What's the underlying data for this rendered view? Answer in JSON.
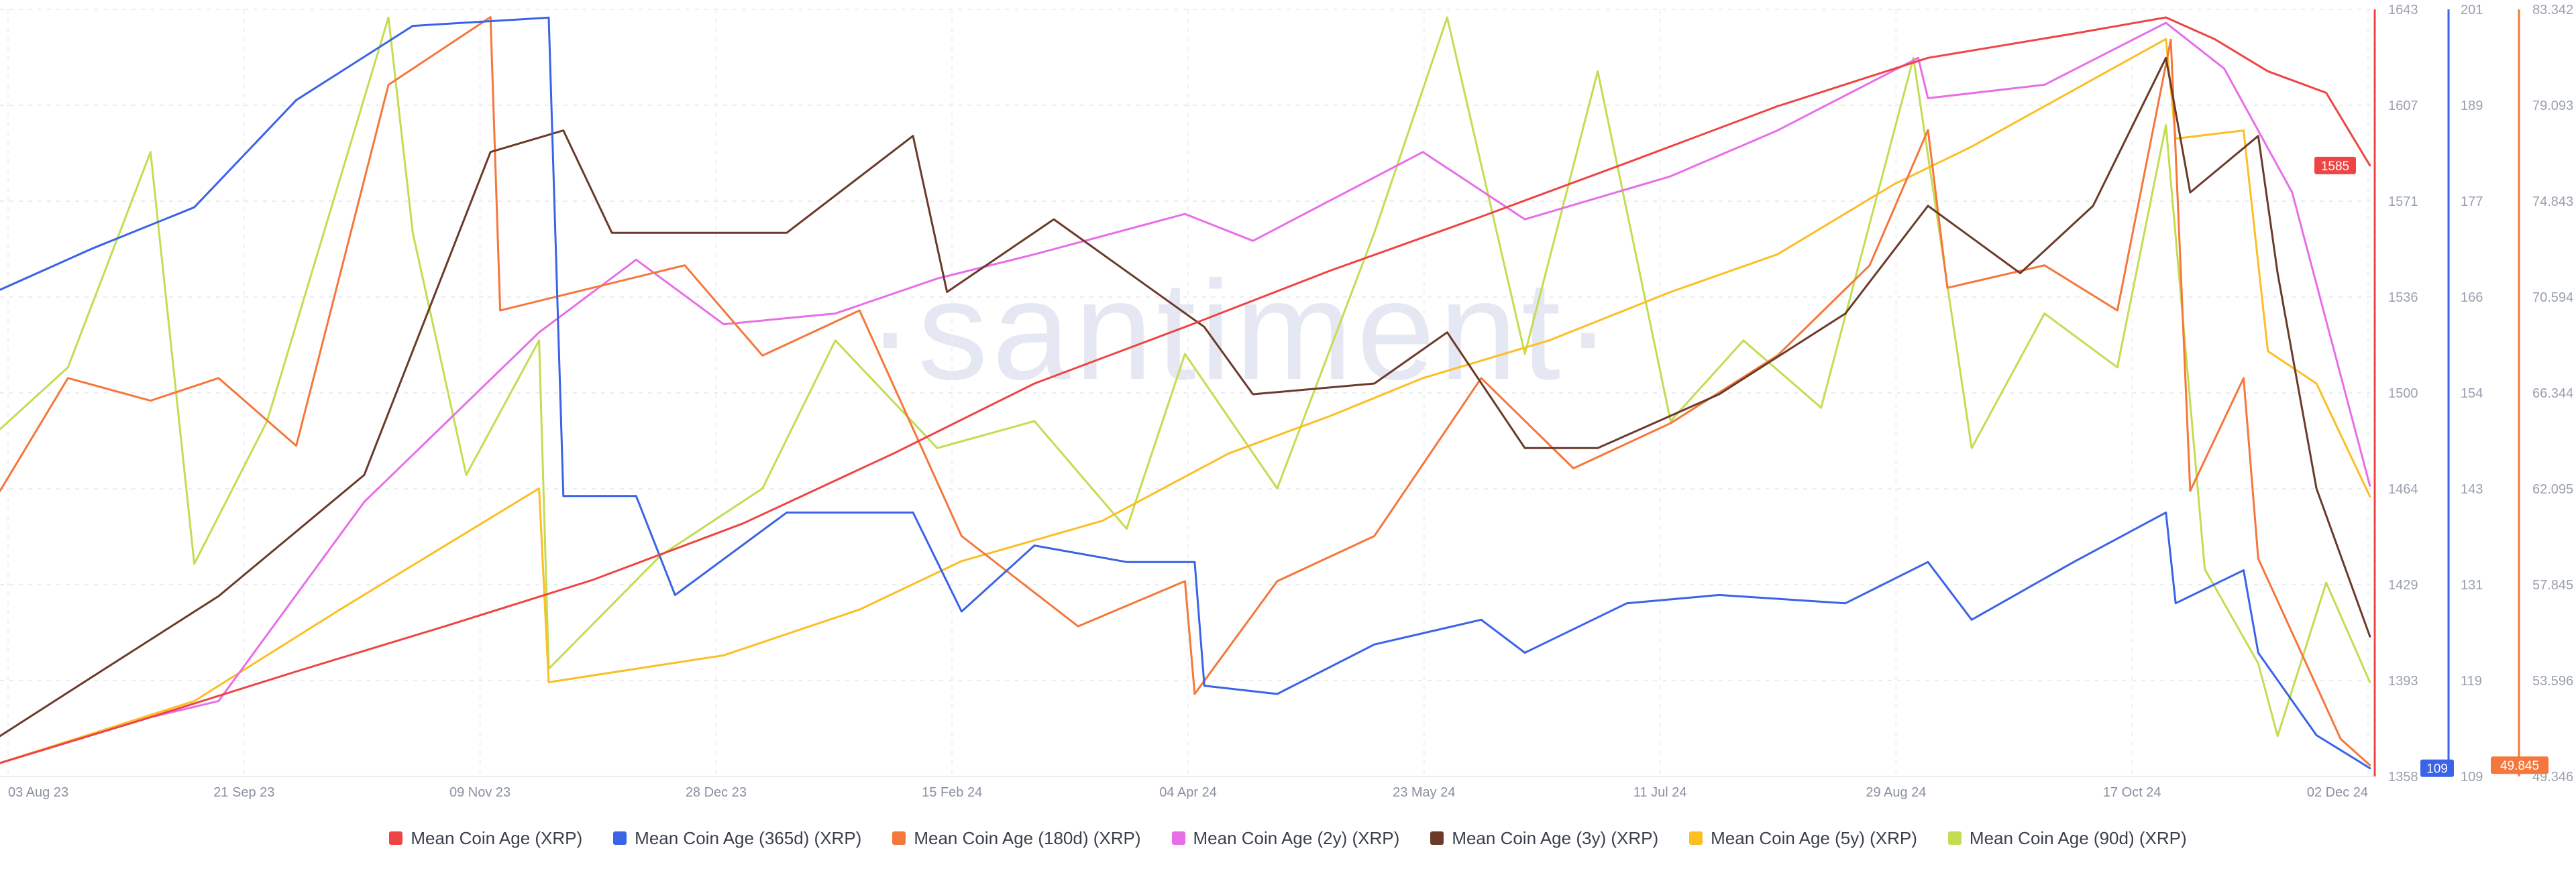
{
  "chart_data": {
    "type": "line",
    "watermark": "·santiment·",
    "x_ticks": [
      "03 Aug 23",
      "21 Sep 23",
      "09 Nov 23",
      "28 Dec 23",
      "15 Feb 24",
      "04 Apr 24",
      "23 May 24",
      "11 Jul 24",
      "29 Aug 24",
      "17 Oct 24",
      "02 Dec 24"
    ],
    "x_range": [
      "2023-08-01",
      "2024-12-02"
    ],
    "axes": [
      {
        "id": "mca",
        "color": "#ef4444",
        "ticks": [
          "1643",
          "1607",
          "1571",
          "1536",
          "1500",
          "1464",
          "1429",
          "1393",
          "1358"
        ],
        "range": [
          1358,
          1643
        ],
        "current_label": "1585",
        "current_value": 1585
      },
      {
        "id": "365d",
        "color": "#3b63e6",
        "ticks": [
          "201",
          "189",
          "177",
          "166",
          "154",
          "143",
          "131",
          "119",
          "109"
        ],
        "range": [
          108,
          201
        ],
        "current_label": "109",
        "current_value": 109
      },
      {
        "id": "180d",
        "color": "#f5773b",
        "ticks": [
          "83.342",
          "79.093",
          "74.843",
          "70.594",
          "66.344",
          "62.095",
          "57.845",
          "53.596",
          "49.346"
        ],
        "range": [
          49.346,
          83.342
        ],
        "current_label": "49.845",
        "current_value": 49.845
      }
    ],
    "series": [
      {
        "name": "Mean Coin Age (XRP)",
        "color": "#ef4444",
        "points": [
          [
            "2023-08-01",
            1363
          ],
          [
            "2023-09-01",
            1380
          ],
          [
            "2023-10-01",
            1397
          ],
          [
            "2023-11-01",
            1414
          ],
          [
            "2023-12-01",
            1431
          ],
          [
            "2024-01-01",
            1452
          ],
          [
            "2024-02-01",
            1478
          ],
          [
            "2024-03-01",
            1504
          ],
          [
            "2024-04-01",
            1525
          ],
          [
            "2024-05-01",
            1546
          ],
          [
            "2024-06-01",
            1566
          ],
          [
            "2024-07-01",
            1586
          ],
          [
            "2024-08-01",
            1607
          ],
          [
            "2024-09-01",
            1625
          ],
          [
            "2024-10-01",
            1634
          ],
          [
            "2024-10-20",
            1640
          ],
          [
            "2024-10-30",
            1632
          ],
          [
            "2024-11-10",
            1620
          ],
          [
            "2024-11-22",
            1612
          ],
          [
            "2024-12-01",
            1585
          ]
        ]
      },
      {
        "name": "Mean Coin Age (365d) (XRP)",
        "color": "#3b63e6",
        "points": [
          [
            "2023-08-01",
            167
          ],
          [
            "2023-08-20",
            172
          ],
          [
            "2023-09-10",
            177
          ],
          [
            "2023-10-01",
            190
          ],
          [
            "2023-10-25",
            199
          ],
          [
            "2023-11-22",
            200
          ],
          [
            "2023-11-25",
            142
          ],
          [
            "2023-12-10",
            142
          ],
          [
            "2023-12-18",
            130
          ],
          [
            "2024-01-10",
            140
          ],
          [
            "2024-02-05",
            140
          ],
          [
            "2024-02-15",
            128
          ],
          [
            "2024-03-01",
            136
          ],
          [
            "2024-03-20",
            134
          ],
          [
            "2024-04-03",
            134
          ],
          [
            "2024-04-05",
            119
          ],
          [
            "2024-04-20",
            118
          ],
          [
            "2024-05-10",
            124
          ],
          [
            "2024-06-01",
            127
          ],
          [
            "2024-06-10",
            123
          ],
          [
            "2024-07-01",
            129
          ],
          [
            "2024-07-20",
            130
          ],
          [
            "2024-08-15",
            129
          ],
          [
            "2024-09-01",
            134
          ],
          [
            "2024-09-10",
            127
          ],
          [
            "2024-10-01",
            134
          ],
          [
            "2024-10-20",
            140
          ],
          [
            "2024-10-22",
            129
          ],
          [
            "2024-11-05",
            133
          ],
          [
            "2024-11-08",
            123
          ],
          [
            "2024-11-20",
            113
          ],
          [
            "2024-12-01",
            109
          ]
        ]
      },
      {
        "name": "Mean Coin Age (180d) (XRP)",
        "color": "#f5773b",
        "points": [
          [
            "2023-08-01",
            62
          ],
          [
            "2023-08-15",
            67
          ],
          [
            "2023-09-01",
            66
          ],
          [
            "2023-09-15",
            67
          ],
          [
            "2023-10-01",
            64
          ],
          [
            "2023-10-20",
            80
          ],
          [
            "2023-11-10",
            83
          ],
          [
            "2023-11-12",
            70
          ],
          [
            "2023-12-01",
            71
          ],
          [
            "2023-12-20",
            72
          ],
          [
            "2024-01-05",
            68
          ],
          [
            "2024-01-25",
            70
          ],
          [
            "2024-02-15",
            60
          ],
          [
            "2024-03-10",
            56
          ],
          [
            "2024-04-01",
            58
          ],
          [
            "2024-04-03",
            53
          ],
          [
            "2024-04-20",
            58
          ],
          [
            "2024-05-10",
            60
          ],
          [
            "2024-06-01",
            67
          ],
          [
            "2024-06-20",
            63
          ],
          [
            "2024-07-10",
            65
          ],
          [
            "2024-08-01",
            68
          ],
          [
            "2024-08-20",
            72
          ],
          [
            "2024-09-01",
            78
          ],
          [
            "2024-09-05",
            71
          ],
          [
            "2024-09-25",
            72
          ],
          [
            "2024-10-10",
            70
          ],
          [
            "2024-10-21",
            82
          ],
          [
            "2024-10-25",
            62
          ],
          [
            "2024-11-05",
            67
          ],
          [
            "2024-11-08",
            59
          ],
          [
            "2024-11-25",
            51
          ],
          [
            "2024-12-01",
            49.845
          ]
        ]
      },
      {
        "name": "Mean Coin Age (2y) (XRP)",
        "color": "#e86ee8",
        "points": [
          [
            "2023-08-01",
            1363
          ],
          [
            "2023-09-01",
            1380
          ],
          [
            "2023-09-15",
            1386
          ],
          [
            "2023-10-15",
            1460
          ],
          [
            "2023-11-20",
            1523
          ],
          [
            "2023-12-10",
            1550
          ],
          [
            "2023-12-28",
            1526
          ],
          [
            "2024-01-20",
            1530
          ],
          [
            "2024-02-10",
            1543
          ],
          [
            "2024-03-01",
            1552
          ],
          [
            "2024-04-01",
            1567
          ],
          [
            "2024-04-15",
            1557
          ],
          [
            "2024-05-20",
            1590
          ],
          [
            "2024-06-10",
            1565
          ],
          [
            "2024-07-10",
            1581
          ],
          [
            "2024-08-01",
            1598
          ],
          [
            "2024-08-30",
            1625
          ],
          [
            "2024-09-01",
            1610
          ],
          [
            "2024-09-25",
            1615
          ],
          [
            "2024-10-20",
            1638
          ],
          [
            "2024-11-01",
            1621
          ],
          [
            "2024-11-15",
            1575
          ],
          [
            "2024-12-01",
            1466
          ]
        ]
      },
      {
        "name": "Mean Coin Age (3y) (XRP)",
        "color": "#6b3a2a",
        "points": [
          [
            "2023-08-01",
            1373
          ],
          [
            "2023-08-20",
            1395
          ],
          [
            "2023-09-15",
            1425
          ],
          [
            "2023-10-15",
            1470
          ],
          [
            "2023-11-10",
            1590
          ],
          [
            "2023-11-25",
            1598
          ],
          [
            "2023-12-05",
            1560
          ],
          [
            "2024-01-10",
            1560
          ],
          [
            "2024-02-05",
            1596
          ],
          [
            "2024-02-12",
            1538
          ],
          [
            "2024-03-05",
            1565
          ],
          [
            "2024-04-05",
            1525
          ],
          [
            "2024-04-15",
            1500
          ],
          [
            "2024-05-10",
            1504
          ],
          [
            "2024-05-25",
            1523
          ],
          [
            "2024-06-10",
            1480
          ],
          [
            "2024-06-25",
            1480
          ],
          [
            "2024-07-20",
            1500
          ],
          [
            "2024-08-15",
            1530
          ],
          [
            "2024-09-01",
            1570
          ],
          [
            "2024-09-20",
            1545
          ],
          [
            "2024-10-05",
            1570
          ],
          [
            "2024-10-20",
            1625
          ],
          [
            "2024-10-25",
            1575
          ],
          [
            "2024-11-08",
            1596
          ],
          [
            "2024-11-12",
            1545
          ],
          [
            "2024-11-20",
            1465
          ],
          [
            "2024-12-01",
            1410
          ]
        ]
      },
      {
        "name": "Mean Coin Age (5y) (XRP)",
        "color": "#fbbf24",
        "points": [
          [
            "2023-08-01",
            1363
          ],
          [
            "2023-09-10",
            1386
          ],
          [
            "2023-10-10",
            1420
          ],
          [
            "2023-11-20",
            1465
          ],
          [
            "2023-11-22",
            1393
          ],
          [
            "2023-12-28",
            1403
          ],
          [
            "2024-01-25",
            1420
          ],
          [
            "2024-02-15",
            1438
          ],
          [
            "2024-03-15",
            1453
          ],
          [
            "2024-04-10",
            1478
          ],
          [
            "2024-05-01",
            1492
          ],
          [
            "2024-05-20",
            1506
          ],
          [
            "2024-06-15",
            1520
          ],
          [
            "2024-07-10",
            1538
          ],
          [
            "2024-08-01",
            1552
          ],
          [
            "2024-08-25",
            1578
          ],
          [
            "2024-09-10",
            1592
          ],
          [
            "2024-09-30",
            1612
          ],
          [
            "2024-10-20",
            1632
          ],
          [
            "2024-10-22",
            1595
          ],
          [
            "2024-11-05",
            1598
          ],
          [
            "2024-11-10",
            1516
          ],
          [
            "2024-11-20",
            1504
          ],
          [
            "2024-12-01",
            1462
          ]
        ]
      },
      {
        "name": "Mean Coin Age (90d) (XRP)",
        "color": "#c3dd52",
        "points": [
          [
            "2023-08-01",
            1487
          ],
          [
            "2023-08-15",
            1510
          ],
          [
            "2023-09-01",
            1590
          ],
          [
            "2023-09-10",
            1437
          ],
          [
            "2023-09-25",
            1490
          ],
          [
            "2023-10-20",
            1640
          ],
          [
            "2023-10-25",
            1560
          ],
          [
            "2023-11-05",
            1470
          ],
          [
            "2023-11-20",
            1520
          ],
          [
            "2023-11-22",
            1398
          ],
          [
            "2023-12-15",
            1440
          ],
          [
            "2024-01-05",
            1465
          ],
          [
            "2024-01-20",
            1520
          ],
          [
            "2024-02-10",
            1480
          ],
          [
            "2024-03-01",
            1490
          ],
          [
            "2024-03-20",
            1450
          ],
          [
            "2024-04-01",
            1515
          ],
          [
            "2024-04-20",
            1465
          ],
          [
            "2024-05-10",
            1560
          ],
          [
            "2024-05-25",
            1640
          ],
          [
            "2024-06-10",
            1515
          ],
          [
            "2024-06-25",
            1620
          ],
          [
            "2024-07-10",
            1490
          ],
          [
            "2024-07-25",
            1520
          ],
          [
            "2024-08-10",
            1495
          ],
          [
            "2024-08-29",
            1625
          ],
          [
            "2024-09-10",
            1480
          ],
          [
            "2024-09-25",
            1530
          ],
          [
            "2024-10-10",
            1510
          ],
          [
            "2024-10-20",
            1600
          ],
          [
            "2024-10-28",
            1435
          ],
          [
            "2024-11-08",
            1400
          ],
          [
            "2024-11-12",
            1373
          ],
          [
            "2024-11-22",
            1430
          ],
          [
            "2024-12-01",
            1393
          ]
        ]
      }
    ],
    "legend_position": "bottom"
  }
}
